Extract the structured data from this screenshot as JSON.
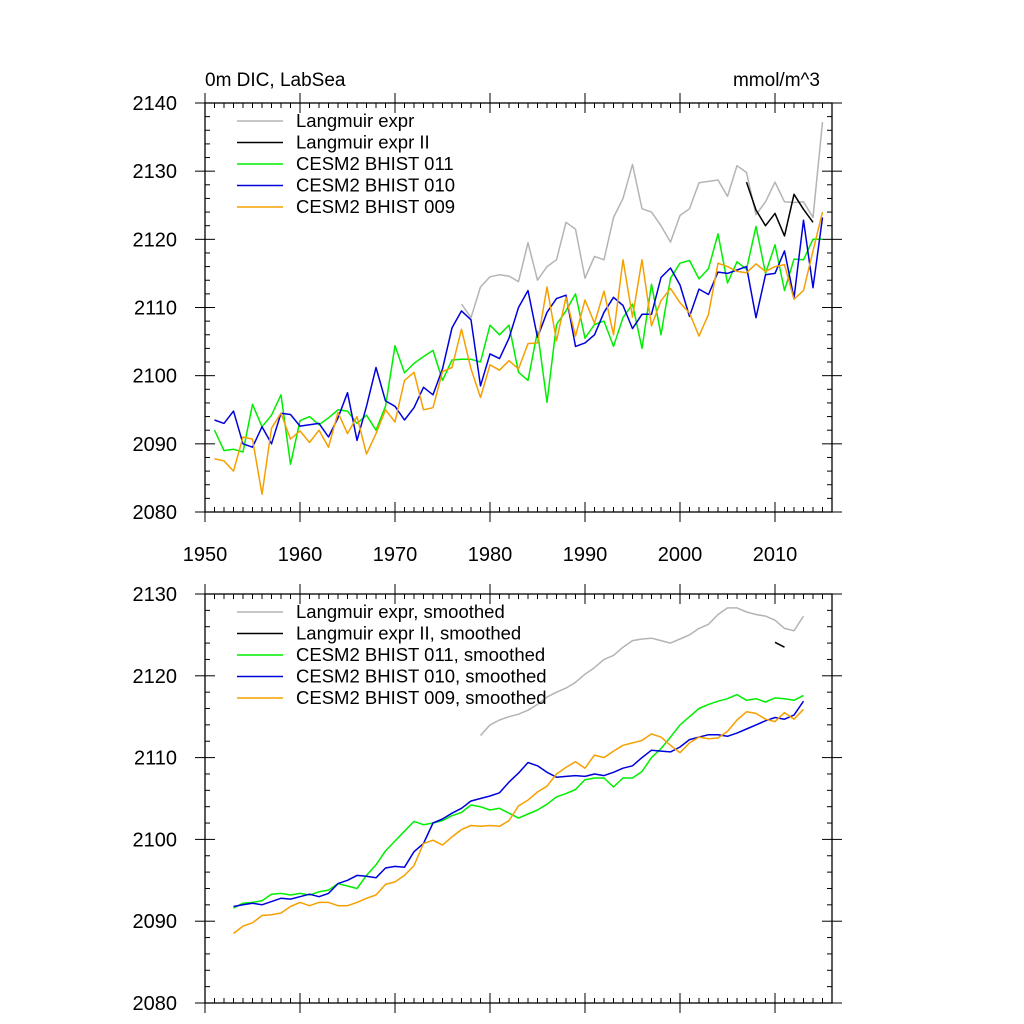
{
  "chart_data": [
    {
      "type": "line",
      "title_left": "0m DIC, LabSea",
      "title_right": "mmol/m^3",
      "xlabel": "",
      "ylabel": "",
      "xlim": [
        1950,
        2016
      ],
      "ylim": [
        2080,
        2140
      ],
      "xticks": [
        1950,
        1960,
        1970,
        1980,
        1990,
        2000,
        2010
      ],
      "yticks": [
        2080,
        2090,
        2100,
        2110,
        2120,
        2130,
        2140
      ],
      "grid": false,
      "legend_position": "top-left",
      "series": [
        {
          "name": "Langmuir expr",
          "color": "#b4b4b4",
          "x": [
            1977,
            1978,
            1979,
            1980,
            1981,
            1982,
            1983,
            1984,
            1985,
            1986,
            1987,
            1988,
            1989,
            1990,
            1991,
            1992,
            1993,
            1994,
            1995,
            1996,
            1997,
            1998,
            1999,
            2000,
            2001,
            2002,
            2003,
            2004,
            2005,
            2006,
            2007,
            2008,
            2009,
            2010,
            2011,
            2012,
            2013,
            2014,
            2015
          ],
          "y": [
            2110.5,
            2108.5,
            2113,
            2114.5,
            2114.8,
            2114.6,
            2113.8,
            2119.5,
            2114,
            2116,
            2117,
            2122.5,
            2121.5,
            2114.3,
            2117.5,
            2117,
            2123.2,
            2126,
            2131,
            2124.5,
            2124,
            2122,
            2119.6,
            2123.5,
            2124.5,
            2128.3,
            2128.5,
            2128.7,
            2126.3,
            2130.8,
            2129.8,
            2123.6,
            2125.5,
            2128.4,
            2125.5,
            2125.4,
            2125.5,
            2123.2,
            2137.2
          ]
        },
        {
          "name": "Langmuir expr II",
          "color": "#000000",
          "x": [
            2007,
            2008,
            2009,
            2010,
            2011,
            2012,
            2013,
            2014
          ],
          "y": [
            2128.4,
            2124.3,
            2122,
            2123.8,
            2120.5,
            2126.6,
            2124.4,
            2122.5
          ]
        },
        {
          "name": "CESM2 BHIST 011",
          "color": "#00ee00",
          "x": [
            1951,
            1952,
            1953,
            1954,
            1955,
            1956,
            1957,
            1958,
            1959,
            1960,
            1961,
            1962,
            1963,
            1964,
            1965,
            1966,
            1967,
            1968,
            1969,
            1970,
            1971,
            1972,
            1973,
            1974,
            1975,
            1976,
            1977,
            1978,
            1979,
            1980,
            1981,
            1982,
            1983,
            1984,
            1985,
            1986,
            1987,
            1988,
            1989,
            1990,
            1991,
            1992,
            1993,
            1994,
            1995,
            1996,
            1997,
            1998,
            1999,
            2000,
            2001,
            2002,
            2003,
            2004,
            2005,
            2006,
            2007,
            2008,
            2009,
            2010,
            2011,
            2012,
            2013,
            2014,
            2015
          ],
          "y": [
            2092,
            2089,
            2089.2,
            2088.8,
            2095.8,
            2092.5,
            2094.2,
            2097.2,
            2087,
            2093.4,
            2094,
            2092.8,
            2093.8,
            2095,
            2094.8,
            2093,
            2094.2,
            2092,
            2095.5,
            2104.4,
            2100.4,
            2101.8,
            2102.8,
            2103.7,
            2099.3,
            2102.3,
            2102.4,
            2102.4,
            2102,
            2107.4,
            2106,
            2107.4,
            2100.5,
            2099.3,
            2106.5,
            2096.1,
            2107.5,
            2109.5,
            2112,
            2105.5,
            2107.5,
            2108,
            2104.3,
            2108.5,
            2110.5,
            2104,
            2113.4,
            2106,
            2114.3,
            2116.5,
            2116.9,
            2114.2,
            2115.7,
            2120.8,
            2113.6,
            2116.7,
            2115.6,
            2121.9,
            2115,
            2119.2,
            2112.5,
            2117.1,
            2117,
            2120,
            2120
          ]
        },
        {
          "name": "CESM2 BHIST 010",
          "color": "#0000dd",
          "x": [
            1951,
            1952,
            1953,
            1954,
            1955,
            1956,
            1957,
            1958,
            1959,
            1960,
            1961,
            1962,
            1963,
            1964,
            1965,
            1966,
            1967,
            1968,
            1969,
            1970,
            1971,
            1972,
            1973,
            1974,
            1975,
            1976,
            1977,
            1978,
            1979,
            1980,
            1981,
            1982,
            1983,
            1984,
            1985,
            1986,
            1987,
            1988,
            1989,
            1990,
            1991,
            1992,
            1993,
            1994,
            1995,
            1996,
            1997,
            1998,
            1999,
            2000,
            2001,
            2002,
            2003,
            2004,
            2005,
            2006,
            2007,
            2008,
            2009,
            2010,
            2011,
            2012,
            2013,
            2014,
            2015
          ],
          "y": [
            2093.5,
            2093,
            2094.8,
            2090,
            2089.5,
            2092.5,
            2090,
            2094.5,
            2094.3,
            2092.6,
            2092.8,
            2093,
            2091,
            2093.8,
            2097.5,
            2090.5,
            2095.5,
            2101.2,
            2096.3,
            2095.5,
            2093.5,
            2095.3,
            2098.3,
            2097.2,
            2101,
            2107,
            2109.5,
            2108.2,
            2098.5,
            2103.2,
            2102.5,
            2105.5,
            2110,
            2112.5,
            2105.6,
            2109.3,
            2111.3,
            2111.8,
            2104.3,
            2104.8,
            2106,
            2109.3,
            2111.5,
            2110.3,
            2106.9,
            2109,
            2109,
            2114.4,
            2115.8,
            2113.3,
            2108.7,
            2112.7,
            2111.9,
            2115.2,
            2115,
            2115.5,
            2116,
            2108.5,
            2114.8,
            2115,
            2118.3,
            2111.4,
            2122.8,
            2112.9,
            2123.2
          ]
        },
        {
          "name": "CESM2 BHIST 009",
          "color": "#f5a000",
          "x": [
            1951,
            1952,
            1953,
            1954,
            1955,
            1956,
            1957,
            1958,
            1959,
            1960,
            1961,
            1962,
            1963,
            1964,
            1965,
            1966,
            1967,
            1968,
            1969,
            1970,
            1971,
            1972,
            1973,
            1974,
            1975,
            1976,
            1977,
            1978,
            1979,
            1980,
            1981,
            1982,
            1983,
            1984,
            1985,
            1986,
            1987,
            1988,
            1989,
            1990,
            1991,
            1992,
            1993,
            1994,
            1995,
            1996,
            1997,
            1998,
            1999,
            2000,
            2001,
            2002,
            2003,
            2004,
            2005,
            2006,
            2007,
            2008,
            2009,
            2010,
            2011,
            2012,
            2013,
            2014,
            2015
          ],
          "y": [
            2087.8,
            2087.5,
            2086,
            2091,
            2090.7,
            2082.6,
            2092.3,
            2094.5,
            2090.7,
            2091.9,
            2090.2,
            2092,
            2089.5,
            2094.6,
            2091.5,
            2094,
            2088.5,
            2091.5,
            2095,
            2093.2,
            2099.3,
            2100.5,
            2095,
            2095.3,
            2100.6,
            2101.2,
            2106.8,
            2101,
            2096.8,
            2101.6,
            2100.8,
            2102.2,
            2101,
            2104.7,
            2104.8,
            2113,
            2105.1,
            2111.5,
            2105.8,
            2111.1,
            2107.7,
            2112.4,
            2106,
            2117,
            2108.6,
            2117,
            2107.3,
            2111,
            2112.8,
            2110.7,
            2109.2,
            2105.8,
            2109,
            2116.5,
            2116,
            2115.3,
            2115.1,
            2116.4,
            2115.3,
            2116,
            2116.3,
            2111.2,
            2112.5,
            2118.3,
            2124
          ]
        }
      ]
    },
    {
      "type": "line",
      "xlabel": "",
      "ylabel": "",
      "xlim": [
        1950,
        2016
      ],
      "ylim": [
        2080,
        2130
      ],
      "yticks": [
        2080,
        2090,
        2100,
        2110,
        2120,
        2130
      ],
      "grid": false,
      "legend_position": "top-left",
      "series": [
        {
          "name": "Langmuir expr, smoothed",
          "color": "#b4b4b4",
          "x": [
            1979,
            1980,
            1981,
            1982,
            1983,
            1984,
            1985,
            1986,
            1987,
            1988,
            1989,
            1990,
            1991,
            1992,
            1993,
            1994,
            1995,
            1996,
            1997,
            1998,
            1999,
            2000,
            2001,
            2002,
            2003,
            2004,
            2005,
            2006,
            2007,
            2008,
            2009,
            2010,
            2011,
            2012,
            2013
          ],
          "y": [
            2112.7,
            2114,
            2114.6,
            2115,
            2115.3,
            2115.8,
            2116.5,
            2117.4,
            2118,
            2118.5,
            2119.2,
            2120.2,
            2121,
            2122,
            2122.5,
            2123.5,
            2124.3,
            2124.5,
            2124.6,
            2124.3,
            2124,
            2124.5,
            2125,
            2125.8,
            2126.3,
            2127.5,
            2128.3,
            2128.3,
            2127.8,
            2127.5,
            2127.3,
            2126.8,
            2125.8,
            2125.5,
            2127.3
          ]
        },
        {
          "name": "Langmuir expr II, smoothed",
          "color": "#000000",
          "x": [
            2010,
            2011
          ],
          "y": [
            2124.1,
            2123.5
          ]
        },
        {
          "name": "CESM2 BHIST 011, smoothed",
          "color": "#00ee00",
          "x": [
            1953,
            1954,
            1955,
            1956,
            1957,
            1958,
            1959,
            1960,
            1961,
            1962,
            1963,
            1964,
            1965,
            1966,
            1967,
            1968,
            1969,
            1970,
            1971,
            1972,
            1973,
            1974,
            1975,
            1976,
            1977,
            1978,
            1979,
            1980,
            1981,
            1982,
            1983,
            1984,
            1985,
            1986,
            1987,
            1988,
            1989,
            1990,
            1991,
            1992,
            1993,
            1994,
            1995,
            1996,
            1997,
            1998,
            1999,
            2000,
            2001,
            2002,
            2003,
            2004,
            2005,
            2006,
            2007,
            2008,
            2009,
            2010,
            2011,
            2012,
            2013
          ],
          "y": [
            2091.6,
            2092.2,
            2092.3,
            2092.5,
            2093.3,
            2093.4,
            2093.2,
            2093.4,
            2093.2,
            2093.6,
            2093.8,
            2094.6,
            2094.3,
            2094,
            2095.6,
            2096.9,
            2098.6,
            2099.8,
            2101,
            2102.2,
            2101.8,
            2102,
            2102.3,
            2102.9,
            2103.3,
            2104.2,
            2104,
            2103.6,
            2103.8,
            2103.2,
            2102.6,
            2103.1,
            2103.6,
            2104.3,
            2105.2,
            2105.6,
            2106.1,
            2107.3,
            2107.5,
            2107.5,
            2106.4,
            2107.5,
            2107.5,
            2108.3,
            2110,
            2111.1,
            2112.5,
            2114,
            2115,
            2116,
            2116.5,
            2116.9,
            2117.2,
            2117.7,
            2117,
            2117.2,
            2116.8,
            2117.3,
            2117.2,
            2117,
            2117.6
          ]
        },
        {
          "name": "CESM2 BHIST 010, smoothed",
          "color": "#0000dd",
          "x": [
            1953,
            1954,
            1955,
            1956,
            1957,
            1958,
            1959,
            1960,
            1961,
            1962,
            1963,
            1964,
            1965,
            1966,
            1967,
            1968,
            1969,
            1970,
            1971,
            1972,
            1973,
            1974,
            1975,
            1976,
            1977,
            1978,
            1979,
            1980,
            1981,
            1982,
            1983,
            1984,
            1985,
            1986,
            1987,
            1988,
            1989,
            1990,
            1991,
            1992,
            1993,
            1994,
            1995,
            1996,
            1997,
            1998,
            1999,
            2000,
            2001,
            2002,
            2003,
            2004,
            2005,
            2006,
            2007,
            2008,
            2009,
            2010,
            2011,
            2012,
            2013
          ],
          "y": [
            2091.8,
            2092,
            2092.2,
            2092,
            2092.4,
            2092.8,
            2092.7,
            2093,
            2093.3,
            2093,
            2093.4,
            2094.6,
            2095,
            2095.6,
            2095.5,
            2095.3,
            2096.5,
            2096.7,
            2096.6,
            2098.5,
            2099.5,
            2102,
            2102.5,
            2103.2,
            2103.8,
            2104.7,
            2105,
            2105.3,
            2105.7,
            2107,
            2108.1,
            2109.4,
            2109,
            2108.2,
            2107.6,
            2107.7,
            2107.8,
            2107.7,
            2108,
            2107.8,
            2108.2,
            2108.7,
            2109,
            2110,
            2110.9,
            2110.8,
            2110.7,
            2111.3,
            2112.2,
            2112.5,
            2112.8,
            2112.8,
            2112.6,
            2113,
            2113.5,
            2114,
            2114.5,
            2114.9,
            2114.7,
            2115.2,
            2116.9
          ]
        },
        {
          "name": "CESM2 BHIST 009, smoothed",
          "color": "#f5a000",
          "x": [
            1953,
            1954,
            1955,
            1956,
            1957,
            1958,
            1959,
            1960,
            1961,
            1962,
            1963,
            1964,
            1965,
            1966,
            1967,
            1968,
            1969,
            1970,
            1971,
            1972,
            1973,
            1974,
            1975,
            1976,
            1977,
            1978,
            1979,
            1980,
            1981,
            1982,
            1983,
            1984,
            1985,
            1986,
            1987,
            1988,
            1989,
            1990,
            1991,
            1992,
            1993,
            1994,
            1995,
            1996,
            1997,
            1998,
            1999,
            2000,
            2001,
            2002,
            2003,
            2004,
            2005,
            2006,
            2007,
            2008,
            2009,
            2010,
            2011,
            2012,
            2013
          ],
          "y": [
            2088.5,
            2089.4,
            2089.8,
            2090.7,
            2090.8,
            2091,
            2091.8,
            2092.3,
            2091.9,
            2092.3,
            2092.3,
            2091.9,
            2091.9,
            2092.3,
            2092.8,
            2093.2,
            2094.5,
            2094.8,
            2095.6,
            2096.8,
            2099.5,
            2099.9,
            2099.3,
            2100.3,
            2101.2,
            2101.7,
            2101.6,
            2101.7,
            2101.6,
            2102.3,
            2104.1,
            2104.8,
            2105.8,
            2106.5,
            2108,
            2108.8,
            2109.5,
            2108.7,
            2110.3,
            2110,
            2110.8,
            2111.5,
            2111.8,
            2112.1,
            2112.9,
            2112.5,
            2111.5,
            2110.6,
            2111.8,
            2112.5,
            2112.3,
            2112.4,
            2113.2,
            2114.6,
            2115.6,
            2115.4,
            2114.7,
            2114.4,
            2115.5,
            2114.7,
            2115.9
          ]
        }
      ]
    }
  ]
}
